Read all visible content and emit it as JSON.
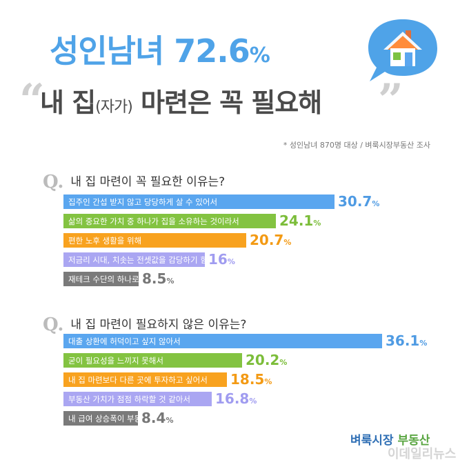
{
  "header": {
    "headline_text": "성인남녀 72.6",
    "headline_pct": "%",
    "sub_before": "내 집",
    "sub_small": "(자가)",
    "sub_after": "마련은 꼭 필요해",
    "quote_open": "“",
    "quote_close": "”",
    "source": "* 성인남녀 870명 대상 / 벼룩시장부동산 조사"
  },
  "colors": {
    "blue": "#5aa6ef",
    "green": "#83c341",
    "orange": "#f8a21f",
    "lavender": "#aaa6f2",
    "gray": "#7a7a7a"
  },
  "chart_data": [
    {
      "type": "bar",
      "title": "내 집 마련이 꼭 필요한 이유는?",
      "categories": [
        "집주인 간섭 받지 않고 당당하게 살 수 있어서",
        "삶의 중요한 가치 중 하나가 집을 소유하는 것이라서",
        "편한 노후 생활을 위해",
        "저금리 시대, 치솟는 전셋값을 감당하기 힘들어서",
        "재테크 수단의 하나로 필요"
      ],
      "values": [
        30.7,
        24.1,
        20.7,
        16,
        8.5
      ],
      "value_labels": [
        "30.7",
        "24.1",
        "20.7",
        "16",
        "8.5"
      ],
      "unit": "%"
    },
    {
      "type": "bar",
      "title": "내 집 마련이 필요하지 않은 이유는?",
      "categories": [
        "대출 상환에 허덕이고 싶지 않아서",
        "굳이 필요성을 느끼지 못해서",
        "내 집 마련보다 다른 곳에 투자하고 싶어서",
        "부동산 가치가 점점 하락할 것 같아서",
        "내 급여 상승폭이 부동산 상승폭에 비해 너무 작아서"
      ],
      "values": [
        36.1,
        20.2,
        18.5,
        16.8,
        8.4
      ],
      "value_labels": [
        "36.1",
        "20.2",
        "18.5",
        "16.8",
        "8.4"
      ],
      "unit": "%"
    }
  ],
  "footer": {
    "brand_a": "벼룩시장",
    "brand_b": "부동산",
    "watermark": "이데일리뉴스"
  }
}
